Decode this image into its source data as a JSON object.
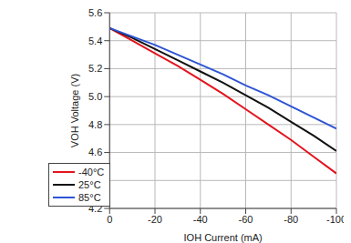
{
  "chart_data": {
    "type": "line",
    "x_label": "IOH Current (mA)",
    "y_label": "VOH Voltage (V)",
    "x": [
      0,
      -10,
      -20,
      -30,
      -40,
      -50,
      -60,
      -70,
      -80,
      -90,
      -100
    ],
    "series": [
      {
        "name": "-40°C",
        "color": "#e3141e",
        "values": [
          5.49,
          5.4,
          5.31,
          5.22,
          5.12,
          5.02,
          4.91,
          4.8,
          4.69,
          4.57,
          4.45
        ]
      },
      {
        "name": "25°C",
        "color": "#111111",
        "values": [
          5.49,
          5.42,
          5.34,
          5.26,
          5.18,
          5.1,
          5.01,
          4.92,
          4.82,
          4.72,
          4.61
        ]
      },
      {
        "name": "85°C",
        "color": "#2f55d4",
        "values": [
          5.49,
          5.43,
          5.37,
          5.3,
          5.23,
          5.16,
          5.08,
          5.01,
          4.93,
          4.85,
          4.77
        ]
      }
    ],
    "xlim": [
      0,
      -100
    ],
    "xticks": [
      0,
      -20,
      -40,
      -60,
      -80,
      -100
    ],
    "ylim": [
      4.2,
      5.6
    ],
    "yticks": [
      {
        "value": 4.2,
        "label": "4.2"
      },
      {
        "value": 4.4,
        "label": "4.4"
      },
      {
        "value": 4.6,
        "label": "4.6"
      },
      {
        "value": 4.8,
        "label": "4.8"
      },
      {
        "value": 5,
        "label": "5.0"
      },
      {
        "value": 5.2,
        "label": "5.2"
      },
      {
        "value": 5.4,
        "label": "5.4"
      },
      {
        "value": 5.6,
        "label": "5.6"
      }
    ],
    "grid": true,
    "legend": "lower left"
  }
}
